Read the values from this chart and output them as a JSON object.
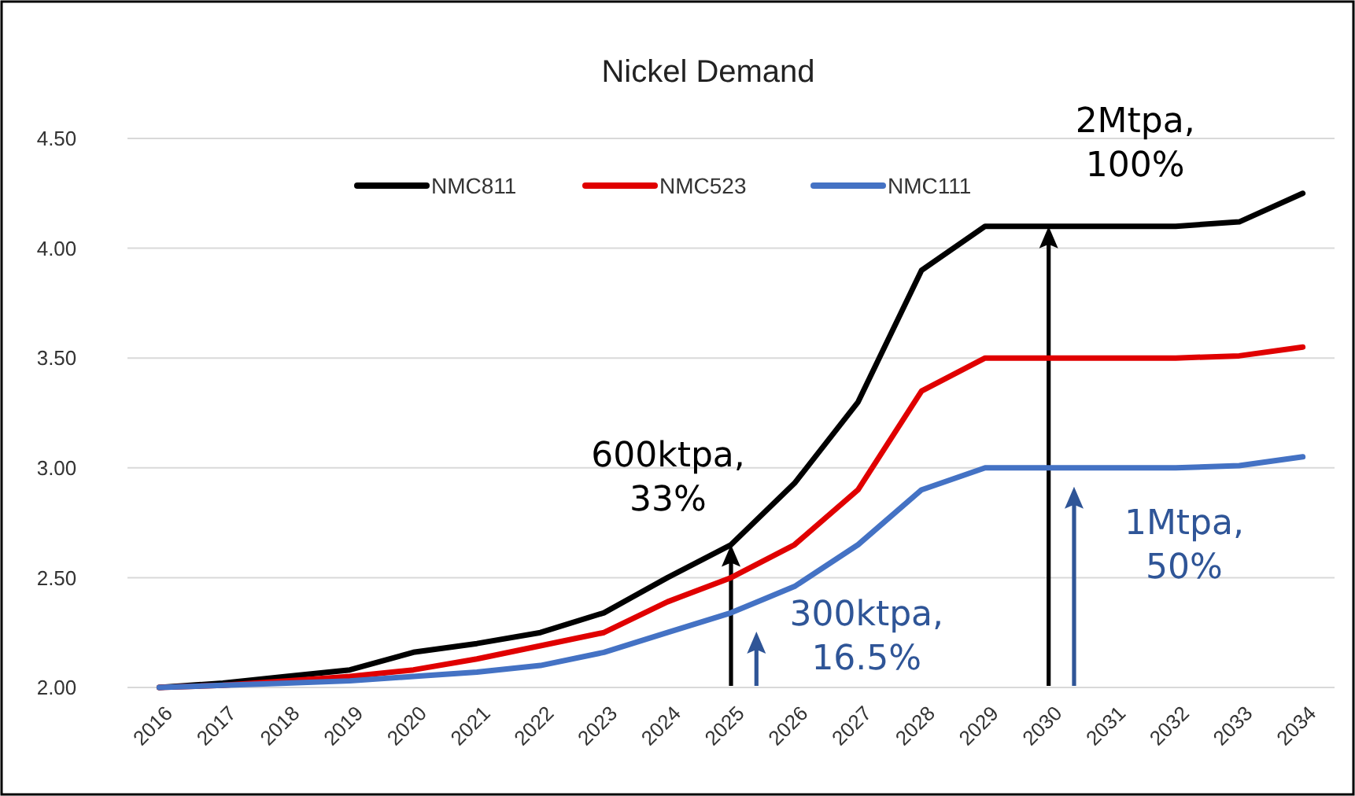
{
  "chart_data": {
    "type": "line",
    "title": "Nickel Demand",
    "categories": [
      "2016",
      "2017",
      "2018",
      "2019",
      "2020",
      "2021",
      "2022",
      "2023",
      "2024",
      "2025",
      "2026",
      "2027",
      "2028",
      "2029",
      "2030",
      "2031",
      "2032",
      "2033",
      "2034"
    ],
    "series": [
      {
        "name": "NMC811",
        "color": "#000000",
        "values": [
          2.0,
          2.02,
          2.05,
          2.08,
          2.16,
          2.2,
          2.25,
          2.34,
          2.5,
          2.65,
          2.93,
          3.3,
          3.9,
          4.1,
          4.1,
          4.1,
          4.1,
          4.12,
          4.25
        ]
      },
      {
        "name": "NMC523",
        "color": "#e00000",
        "values": [
          2.0,
          2.01,
          2.03,
          2.05,
          2.08,
          2.13,
          2.19,
          2.25,
          2.39,
          2.5,
          2.65,
          2.9,
          3.35,
          3.5,
          3.5,
          3.5,
          3.5,
          3.51,
          3.55
        ]
      },
      {
        "name": "NMC111",
        "color": "#4472c4",
        "values": [
          2.0,
          2.01,
          2.02,
          2.03,
          2.05,
          2.07,
          2.1,
          2.16,
          2.25,
          2.34,
          2.46,
          2.65,
          2.9,
          3.0,
          3.0,
          3.0,
          3.0,
          3.01,
          3.05
        ]
      }
    ],
    "ylim": [
      2,
      4.5
    ],
    "yticks": [
      {
        "value": 2,
        "label": "2.00"
      },
      {
        "value": 2.5,
        "label": "2.50"
      },
      {
        "value": 3,
        "label": "3.00"
      },
      {
        "value": 3.5,
        "label": "3.50"
      },
      {
        "value": 4,
        "label": "4.00"
      },
      {
        "value": 4.5,
        "label": "4.50"
      }
    ],
    "grid": "y",
    "legend": "top",
    "marker": "none",
    "line_style": "solid",
    "annotations": [
      {
        "text": "600ktpa,\n33%",
        "x": "2025",
        "y": 2.65
      },
      {
        "text": "300ktpa,\n16.5%",
        "x": "2025",
        "y": 2.34
      },
      {
        "text": "2Mtpa,\n100%",
        "x": "2030",
        "y": 4.1
      },
      {
        "text": "1Mtpa,\n50%",
        "x": "2030",
        "y": 3.0
      }
    ]
  }
}
